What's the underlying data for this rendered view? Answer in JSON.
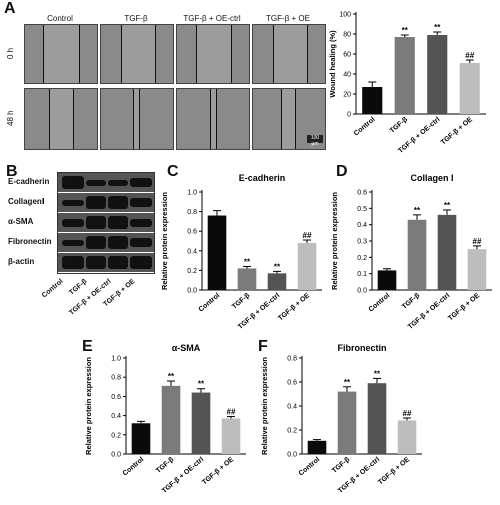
{
  "panels": {
    "A": "A",
    "B": "B",
    "C": "C",
    "D": "D",
    "E": "E",
    "F": "F"
  },
  "scratch": {
    "groups": [
      "Control",
      "TGF-β",
      "TGF-β + OE-ctrl",
      "TGF-β  + OE"
    ],
    "rows": [
      "0 h",
      "48 h"
    ],
    "scale_bar": "100 μm"
  },
  "blot": {
    "rows": [
      "E-cadherin",
      "CollagenⅠ",
      "α-SMA",
      "Fibronectin",
      "β-actin"
    ],
    "lanes": [
      "Control",
      "TGF-β",
      "TGF-β + OE-ctrl",
      "TGF-β + OE"
    ]
  },
  "chart_data": [
    {
      "id": "wound",
      "type": "bar",
      "title": "",
      "ylabel": "Wound healing (%)",
      "categories": [
        "Control",
        "TGF-β",
        "TGF-β + OE-ctrl",
        "TGF-β + OE"
      ],
      "values": [
        27,
        77,
        79,
        51
      ],
      "errors": [
        5,
        2,
        3,
        3
      ],
      "annotations": [
        "",
        "**",
        "**",
        "##"
      ],
      "ylim": [
        0,
        100
      ],
      "yticks": [
        0,
        20,
        40,
        60,
        80,
        100
      ],
      "colors": [
        "#0a0a0a",
        "#7a7a7a",
        "#545454",
        "#bdbdbd"
      ]
    },
    {
      "id": "ecad",
      "type": "bar",
      "title": "E-cadherin",
      "ylabel": "Relative protein expression",
      "categories": [
        "Control",
        "TGF-β",
        "TGF-β + OE-ctrl",
        "TGF-β + OE"
      ],
      "values": [
        0.76,
        0.22,
        0.17,
        0.48
      ],
      "errors": [
        0.05,
        0.02,
        0.02,
        0.03
      ],
      "annotations": [
        "",
        "**",
        "**",
        "##"
      ],
      "ylim": [
        0,
        1.0
      ],
      "yticks": [
        0.0,
        0.2,
        0.4,
        0.6,
        0.8,
        1.0
      ],
      "tickdec": 1,
      "colors": [
        "#0a0a0a",
        "#7a7a7a",
        "#545454",
        "#bdbdbd"
      ]
    },
    {
      "id": "col",
      "type": "bar",
      "title": "Collagen I",
      "ylabel": "Relative protein expression",
      "categories": [
        "Control",
        "TGF-β",
        "TGF-β + OE-ctrl",
        "TGF-β + OE"
      ],
      "values": [
        0.12,
        0.43,
        0.46,
        0.25
      ],
      "errors": [
        0.01,
        0.03,
        0.03,
        0.02
      ],
      "annotations": [
        "",
        "**",
        "**",
        "##"
      ],
      "ylim": [
        0,
        0.6
      ],
      "yticks": [
        0.0,
        0.1,
        0.2,
        0.3,
        0.4,
        0.5,
        0.6
      ],
      "tickdec": 1,
      "colors": [
        "#0a0a0a",
        "#7a7a7a",
        "#545454",
        "#bdbdbd"
      ]
    },
    {
      "id": "asma",
      "type": "bar",
      "title": "α-SMA",
      "ylabel": "Relative protein expression",
      "categories": [
        "Control",
        "TGF-β",
        "TGF-β + OE-ctrl",
        "TGF-β + OE"
      ],
      "values": [
        0.32,
        0.71,
        0.64,
        0.37
      ],
      "errors": [
        0.02,
        0.05,
        0.04,
        0.02
      ],
      "annotations": [
        "",
        "**",
        "**",
        "##"
      ],
      "ylim": [
        0,
        1.0
      ],
      "yticks": [
        0.0,
        0.2,
        0.4,
        0.6,
        0.8,
        1.0
      ],
      "tickdec": 1,
      "colors": [
        "#0a0a0a",
        "#7a7a7a",
        "#545454",
        "#bdbdbd"
      ]
    },
    {
      "id": "fib",
      "type": "bar",
      "title": "Fibronectin",
      "ylabel": "Relative protein expression",
      "categories": [
        "Control",
        "TGF-β",
        "TGF-β + OE-ctrl",
        "TGF-β + OE"
      ],
      "values": [
        0.11,
        0.52,
        0.59,
        0.28
      ],
      "errors": [
        0.01,
        0.04,
        0.04,
        0.02
      ],
      "annotations": [
        "",
        "**",
        "**",
        "##"
      ],
      "ylim": [
        0,
        0.8
      ],
      "yticks": [
        0.0,
        0.2,
        0.4,
        0.6,
        0.8
      ],
      "tickdec": 1,
      "colors": [
        "#0a0a0a",
        "#7a7a7a",
        "#545454",
        "#bdbdbd"
      ]
    }
  ]
}
